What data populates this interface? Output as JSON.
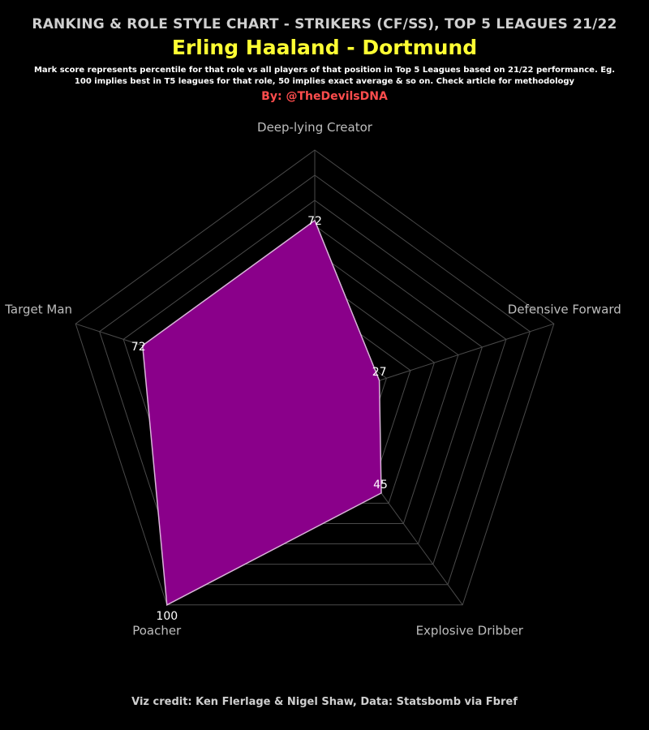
{
  "header": {
    "supertitle": "RANKING & ROLE STYLE CHART - STRIKERS (CF/SS), TOP 5 LEAGUES 21/22",
    "title": "Erling Haaland - Dortmund",
    "note": "Mark score represents percentile for that role vs all players of that position in Top 5 Leagues based on 21/22 performance. Eg. 100 implies best in T5 leagues for that role, 50 implies exact average & so on. Check article for methodology",
    "byline": "By: @TheDevilsDNA"
  },
  "footer": {
    "credit": "Viz credit: Ken Flerlage & Nigel Shaw, Data: Statsbomb via Fbref"
  },
  "colors": {
    "background": "#000000",
    "fill": "#8a008a",
    "stroke": "#d9b3d9",
    "grid": "#4a4a4a",
    "title": "#ffff33",
    "byline": "#ff4d4d"
  },
  "chart_data": {
    "type": "radar",
    "max": 100,
    "rings": 10,
    "categories": [
      "Deep-lying Creator",
      "Defensive Forward",
      "Explosive Dribber",
      "Poacher",
      "Target Man"
    ],
    "values": [
      72,
      27,
      45,
      100,
      72
    ],
    "value_labels": [
      "72",
      "27",
      "45",
      "100",
      "72"
    ]
  }
}
